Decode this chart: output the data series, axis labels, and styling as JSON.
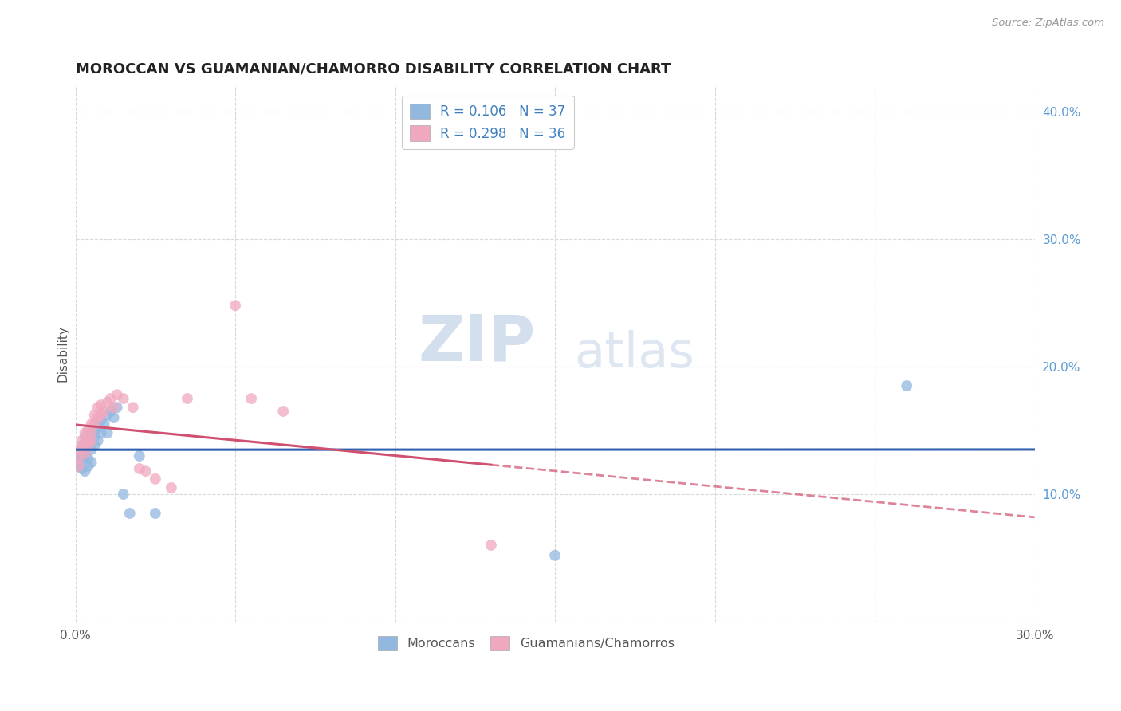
{
  "title": "MOROCCAN VS GUAMANIAN/CHAMORRO DISABILITY CORRELATION CHART",
  "source": "Source: ZipAtlas.com",
  "ylabel": "Disability",
  "xlim": [
    0.0,
    0.3
  ],
  "ylim": [
    0.0,
    0.42
  ],
  "moroccan_R": 0.106,
  "moroccan_N": 37,
  "guamanian_R": 0.298,
  "guamanian_N": 36,
  "blue_color": "#92b8e0",
  "pink_color": "#f0a8be",
  "blue_line_color": "#3060b0",
  "pink_line_color": "#d05070",
  "legend_label_blue": "Moroccans",
  "legend_label_pink": "Guamanians/Chamorros",
  "watermark_zip": "ZIP",
  "watermark_atlas": "atlas",
  "background_color": "#ffffff",
  "grid_color": "#d8d8d8",
  "moroccan_x": [
    0.001,
    0.001,
    0.001,
    0.002,
    0.002,
    0.002,
    0.002,
    0.003,
    0.003,
    0.003,
    0.003,
    0.004,
    0.004,
    0.004,
    0.005,
    0.005,
    0.005,
    0.005,
    0.006,
    0.006,
    0.006,
    0.007,
    0.007,
    0.008,
    0.008,
    0.009,
    0.01,
    0.01,
    0.011,
    0.012,
    0.013,
    0.015,
    0.017,
    0.02,
    0.025,
    0.26,
    0.15
  ],
  "moroccan_y": [
    0.13,
    0.125,
    0.122,
    0.138,
    0.132,
    0.128,
    0.12,
    0.145,
    0.135,
    0.13,
    0.118,
    0.14,
    0.128,
    0.122,
    0.148,
    0.142,
    0.135,
    0.125,
    0.15,
    0.145,
    0.138,
    0.152,
    0.142,
    0.158,
    0.148,
    0.155,
    0.162,
    0.148,
    0.165,
    0.16,
    0.168,
    0.1,
    0.085,
    0.13,
    0.085,
    0.185,
    0.052
  ],
  "guamanian_x": [
    0.001,
    0.001,
    0.001,
    0.002,
    0.002,
    0.003,
    0.003,
    0.003,
    0.004,
    0.004,
    0.004,
    0.005,
    0.005,
    0.005,
    0.006,
    0.006,
    0.007,
    0.007,
    0.008,
    0.008,
    0.009,
    0.01,
    0.011,
    0.012,
    0.013,
    0.015,
    0.018,
    0.02,
    0.022,
    0.025,
    0.03,
    0.035,
    0.055,
    0.065,
    0.05,
    0.13
  ],
  "guamanian_y": [
    0.135,
    0.128,
    0.122,
    0.142,
    0.135,
    0.148,
    0.14,
    0.132,
    0.15,
    0.143,
    0.138,
    0.155,
    0.148,
    0.142,
    0.162,
    0.155,
    0.168,
    0.16,
    0.17,
    0.162,
    0.165,
    0.172,
    0.175,
    0.168,
    0.178,
    0.175,
    0.168,
    0.12,
    0.118,
    0.112,
    0.105,
    0.175,
    0.175,
    0.165,
    0.248,
    0.06
  ]
}
